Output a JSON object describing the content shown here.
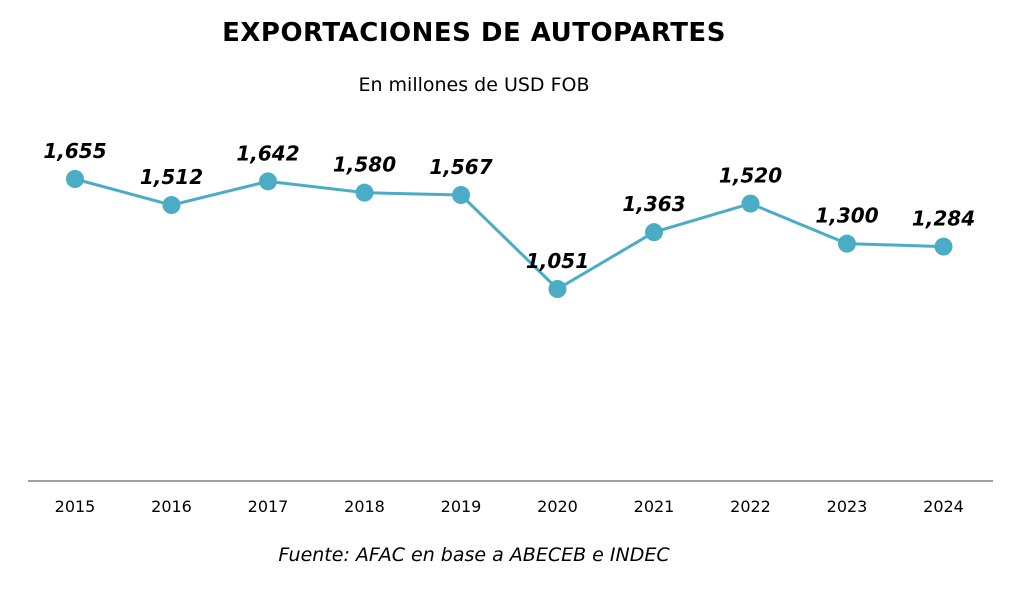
{
  "chart_data": {
    "type": "line",
    "title": "EXPORTACIONES DE AUTOPARTES",
    "subtitle": "En millones de USD FOB",
    "source": "Fuente: AFAC en base a ABECEB e INDEC",
    "categories": [
      "2015",
      "2016",
      "2017",
      "2018",
      "2019",
      "2020",
      "2021",
      "2022",
      "2023",
      "2024"
    ],
    "series": [
      {
        "values": [
          1655,
          1512,
          1642,
          1580,
          1567,
          1051,
          1363,
          1520,
          1300,
          1284
        ],
        "labels": [
          "1,655",
          "1,512",
          "1,642",
          "1,580",
          "1,567",
          "1,051",
          "1,363",
          "1,520",
          "1,300",
          "1,284"
        ]
      }
    ],
    "ylim": [
      0,
      1800
    ],
    "grid": false,
    "colors": {
      "line": "#4BACC6",
      "axis": "#808080"
    }
  }
}
